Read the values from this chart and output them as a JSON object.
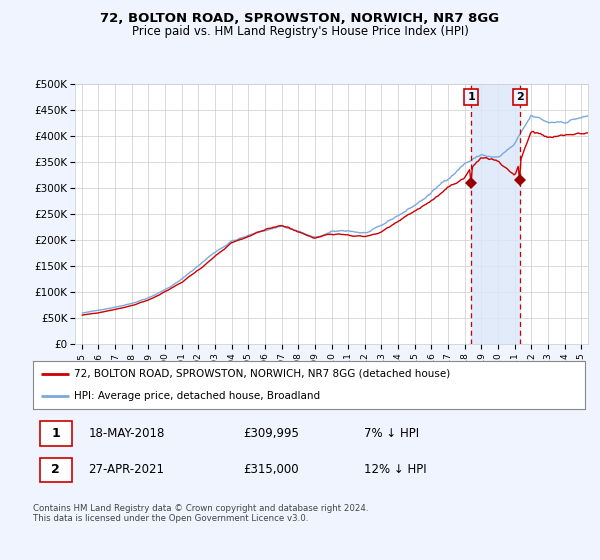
{
  "title": "72, BOLTON ROAD, SPROWSTON, NORWICH, NR7 8GG",
  "subtitle": "Price paid vs. HM Land Registry's House Price Index (HPI)",
  "ylabel_ticks": [
    "£0",
    "£50K",
    "£100K",
    "£150K",
    "£200K",
    "£250K",
    "£300K",
    "£350K",
    "£400K",
    "£450K",
    "£500K"
  ],
  "ytick_values": [
    0,
    50000,
    100000,
    150000,
    200000,
    250000,
    300000,
    350000,
    400000,
    450000,
    500000
  ],
  "ylim": [
    0,
    500000
  ],
  "sale1_date": "18-MAY-2018",
  "sale1_price": 309995,
  "sale2_date": "27-APR-2021",
  "sale2_price": 315000,
  "sale1_hpi_diff": "7% ↓ HPI",
  "sale2_hpi_diff": "12% ↓ HPI",
  "legend_line1": "72, BOLTON ROAD, SPROWSTON, NORWICH, NR7 8GG (detached house)",
  "legend_line2": "HPI: Average price, detached house, Broadland",
  "footer": "Contains HM Land Registry data © Crown copyright and database right 2024.\nThis data is licensed under the Open Government Licence v3.0.",
  "line_color_red": "#cc0000",
  "line_color_blue": "#7aaadd",
  "shade_color": "#dce8f8",
  "background_color": "#f0f4ff",
  "plot_bg": "#ffffff",
  "grid_color": "#cccccc",
  "sale1_x": 2018.38,
  "sale2_x": 2021.32,
  "marker_color": "#990000",
  "vline_color": "#cc0000",
  "annot_bg": "#f0f4ff",
  "annot_border": "#cc0000",
  "xlim_left": 1994.6,
  "xlim_right": 2025.4
}
